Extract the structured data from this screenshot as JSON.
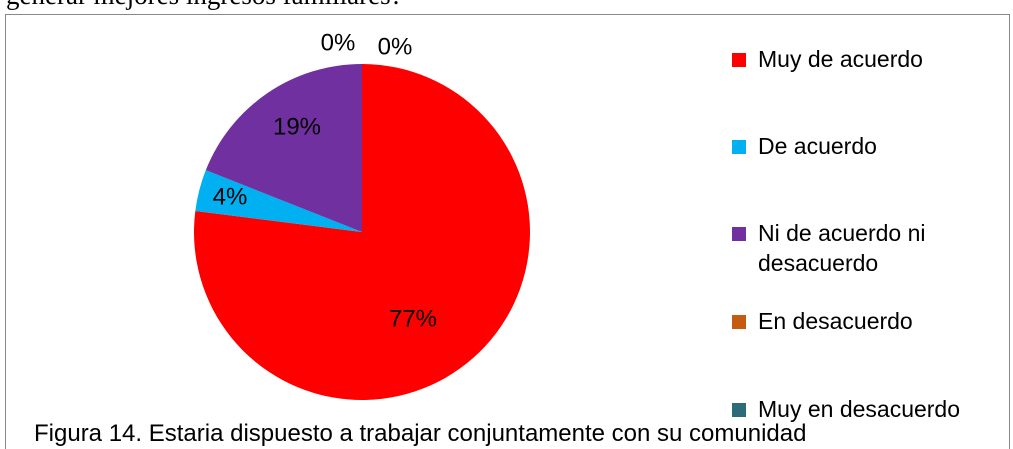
{
  "chart_data": {
    "type": "pie",
    "header_text": "generar mejores ingresos familiares?",
    "caption": "Figura 14. Estaria dispuesto a trabajar conjuntamente con su comunidad",
    "categories": [
      "Muy de acuerdo",
      "De acuerdo",
      "Ni de acuerdo ni desacuerdo",
      "En desacuerdo",
      "Muy en desacuerdo"
    ],
    "values": [
      77,
      4,
      19,
      0,
      0
    ],
    "value_labels": [
      "77%",
      "4%",
      "19%",
      "0%",
      "0%"
    ],
    "colors": [
      "#ff0000",
      "#00b0f0",
      "#7030a0",
      "#c55a11",
      "#2e6b78"
    ],
    "legend": "right"
  }
}
